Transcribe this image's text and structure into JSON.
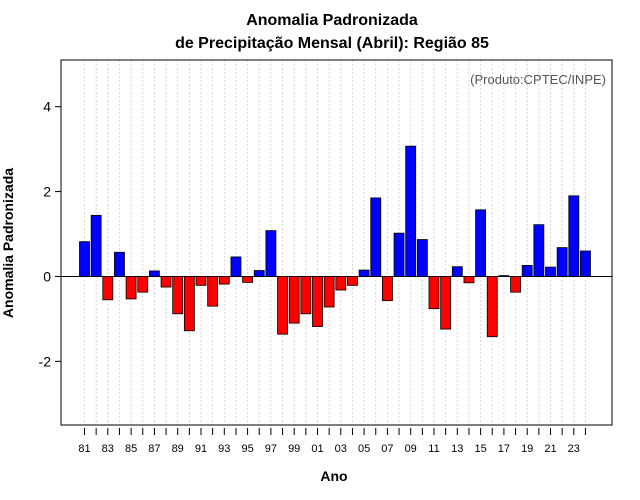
{
  "chart_data": {
    "type": "bar",
    "title_line1": "Anomalia Padronizada",
    "title_line2": "de Precipitação Mensal (Abril): Região 85",
    "xlabel": "Ano",
    "ylabel": "Anomalia Padronizada",
    "credit": "(Produto:CPTEC/INPE)",
    "ylim": [
      -3.5,
      5.1
    ],
    "yticks": [
      -2,
      0,
      2,
      4
    ],
    "ytick_labels": [
      "-2",
      "0",
      "2",
      "4"
    ],
    "grid": true,
    "positive_color": "#0000ff",
    "negative_color": "#ff0000",
    "categories": [
      "81",
      "82",
      "83",
      "84",
      "85",
      "86",
      "87",
      "88",
      "89",
      "90",
      "91",
      "92",
      "93",
      "94",
      "95",
      "96",
      "97",
      "98",
      "99",
      "00",
      "01",
      "02",
      "03",
      "04",
      "05",
      "06",
      "07",
      "08",
      "09",
      "10",
      "11",
      "12",
      "13",
      "14",
      "15",
      "16",
      "17",
      "18",
      "19",
      "20",
      "21",
      "22",
      "23",
      "24"
    ],
    "xtick_labels": [
      "81",
      "83",
      "85",
      "87",
      "89",
      "91",
      "93",
      "95",
      "97",
      "99",
      "01",
      "03",
      "05",
      "07",
      "09",
      "11",
      "13",
      "15",
      "17",
      "19",
      "21",
      "23"
    ],
    "values": [
      0.82,
      1.44,
      -0.55,
      0.57,
      -0.53,
      -0.37,
      0.13,
      -0.25,
      -0.88,
      -1.28,
      -0.21,
      -0.7,
      -0.18,
      0.46,
      -0.14,
      0.14,
      1.08,
      -1.36,
      -1.1,
      -0.88,
      -1.18,
      -0.72,
      -0.32,
      -0.21,
      0.15,
      1.85,
      -0.57,
      1.02,
      3.07,
      0.87,
      -0.76,
      -1.24,
      0.23,
      -0.15,
      1.57,
      -1.42,
      0.02,
      -0.37,
      0.26,
      1.22,
      0.22,
      0.68,
      1.9,
      0.6
    ]
  }
}
